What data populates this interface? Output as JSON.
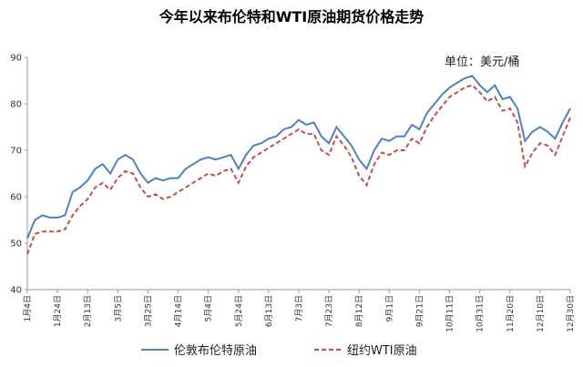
{
  "chart_data": {
    "type": "line",
    "title": "今年以来布伦特和WTI原油期货价格走势",
    "annotation": "单位：美元/桶",
    "categories": [
      "1月4日",
      null,
      null,
      null,
      "1月24日",
      null,
      null,
      null,
      "2月13日",
      null,
      null,
      null,
      "3月5日",
      null,
      null,
      null,
      "3月25日",
      null,
      null,
      null,
      "4月14日",
      null,
      null,
      null,
      "5月4日",
      null,
      null,
      null,
      "5月24日",
      null,
      null,
      null,
      "6月13日",
      null,
      null,
      null,
      "7月3日",
      null,
      null,
      null,
      "7月23日",
      null,
      null,
      null,
      "8月12日",
      null,
      null,
      null,
      "9月1日",
      null,
      null,
      null,
      "9月21日",
      null,
      null,
      null,
      "10月11日",
      null,
      null,
      null,
      "10月31日",
      null,
      null,
      null,
      "11月20日",
      null,
      null,
      null,
      "12月10日",
      null,
      null,
      null,
      "12月30日"
    ],
    "series": [
      {
        "name": "伦敦布伦特原油",
        "color": "#4f81bd",
        "dash": false,
        "values": [
          51,
          55,
          56,
          55.5,
          55.5,
          56,
          61,
          62,
          63.5,
          66,
          67,
          65,
          68,
          69,
          68,
          65,
          63,
          64,
          63.5,
          64,
          64,
          66,
          67,
          68,
          68.5,
          68,
          68.5,
          69,
          66,
          69,
          71,
          71.5,
          72.5,
          73,
          74.5,
          75,
          76.5,
          75.5,
          76,
          73,
          71.5,
          75,
          73,
          71,
          68,
          66,
          70,
          72.5,
          72,
          73,
          73,
          75.5,
          74.5,
          78,
          80,
          82,
          83.5,
          84.5,
          85.5,
          86,
          84,
          82.5,
          84,
          81,
          81.5,
          79,
          72,
          74,
          75,
          74,
          72.5,
          76,
          79
        ]
      },
      {
        "name": "纽约WTI原油",
        "color": "#c0504d",
        "dash": true,
        "values": [
          47.6,
          52,
          52.5,
          52.5,
          52.5,
          53,
          56,
          58,
          59.5,
          62,
          63,
          61.5,
          64,
          65.5,
          65,
          62,
          60,
          60.5,
          59.5,
          60,
          61,
          62,
          63,
          64,
          65,
          64.5,
          65.5,
          66,
          63,
          66.5,
          68.5,
          69.5,
          70.5,
          71.5,
          72.5,
          73.5,
          74.5,
          73.5,
          73.5,
          70,
          69,
          73,
          71,
          68.5,
          64.5,
          62.5,
          67,
          69.5,
          69,
          70,
          70,
          72.5,
          71.5,
          75,
          77.5,
          79.5,
          81.5,
          82.5,
          83.5,
          84,
          82.5,
          80.5,
          81.5,
          78.5,
          79,
          76,
          66.5,
          69.5,
          71.5,
          71,
          69,
          73,
          77
        ]
      }
    ],
    "ylim": [
      40,
      90
    ],
    "yticks": [
      40,
      50,
      60,
      70,
      80,
      90
    ],
    "grid": false
  }
}
